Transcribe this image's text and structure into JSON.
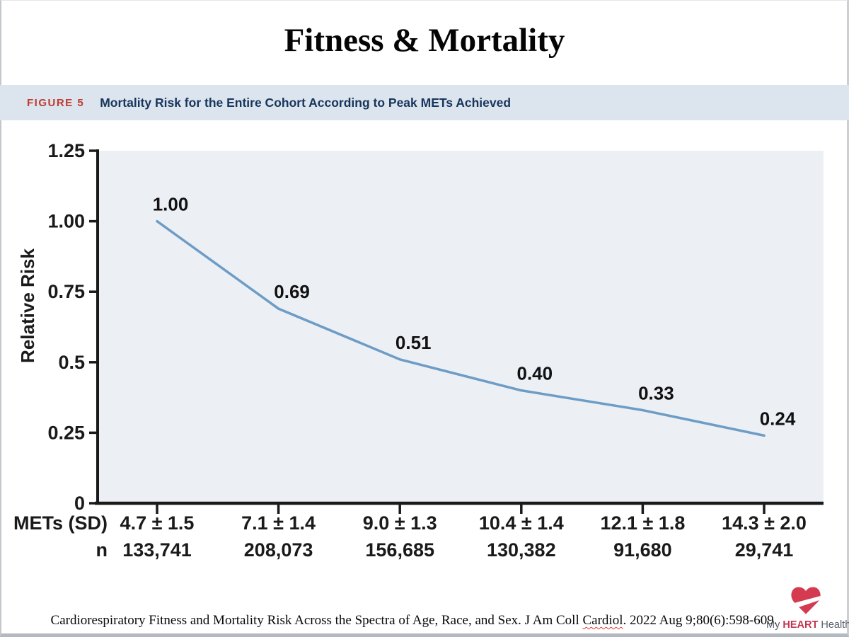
{
  "page": {
    "title": "Fitness & Mortality"
  },
  "figure_header": {
    "label": "FIGURE 5",
    "title": "Mortality Risk for the Entire Cohort According to Peak METs Achieved",
    "label_color": "#bf3a30",
    "title_color": "#17365d",
    "bg_color": "#dce4ed"
  },
  "chart_data": {
    "type": "line",
    "title": "",
    "ylabel": "Relative Risk",
    "categories": [
      "4.7 ± 1.5",
      "7.1 ± 1.4",
      "9.0 ± 1.3",
      "10.4 ± 1.4",
      "12.1 ± 1.8",
      "14.3 ± 2.0"
    ],
    "values": [
      1.0,
      0.69,
      0.51,
      0.4,
      0.33,
      0.24
    ],
    "point_labels": [
      "1.00",
      "0.69",
      "0.51",
      "0.40",
      "0.33",
      "0.24"
    ],
    "yticks": [
      {
        "value": 1.25,
        "label": "1.25"
      },
      {
        "value": 1.0,
        "label": "1.00"
      },
      {
        "value": 0.75,
        "label": "0.75"
      },
      {
        "value": 0.5,
        "label": "0.5"
      },
      {
        "value": 0.25,
        "label": "0.25"
      },
      {
        "value": 0.0,
        "label": "0"
      }
    ],
    "ylim": [
      0,
      1.25
    ],
    "grid": false,
    "legend": null,
    "xlabel_rows": [
      {
        "label": "METs (SD)",
        "values": [
          "4.7 ± 1.5",
          "7.1 ± 1.4",
          "9.0 ± 1.3",
          "10.4 ± 1.4",
          "12.1 ± 1.8",
          "14.3 ± 2.0"
        ]
      },
      {
        "label": "n",
        "values": [
          "133,741",
          "208,073",
          "156,685",
          "130,382",
          "91,680",
          "29,741"
        ]
      }
    ],
    "line_color": "#6d9cc6",
    "plot_bg_color": "#ecf0f4",
    "axis_color": "#1a1a1a",
    "label_color": "#111111"
  },
  "footer": {
    "citation_prefix": "Cardiorespiratory Fitness and Mortality Risk Across the Spectra of Age, Race, and Sex. J Am Coll ",
    "citation_misspelled_word": "Cardiol",
    "citation_suffix": ". 2022 Aug 9;80(6):598-609."
  },
  "logo": {
    "word1": "My ",
    "word2": "HEART",
    "word3": " Health",
    "heart_color": "#d43a50"
  }
}
